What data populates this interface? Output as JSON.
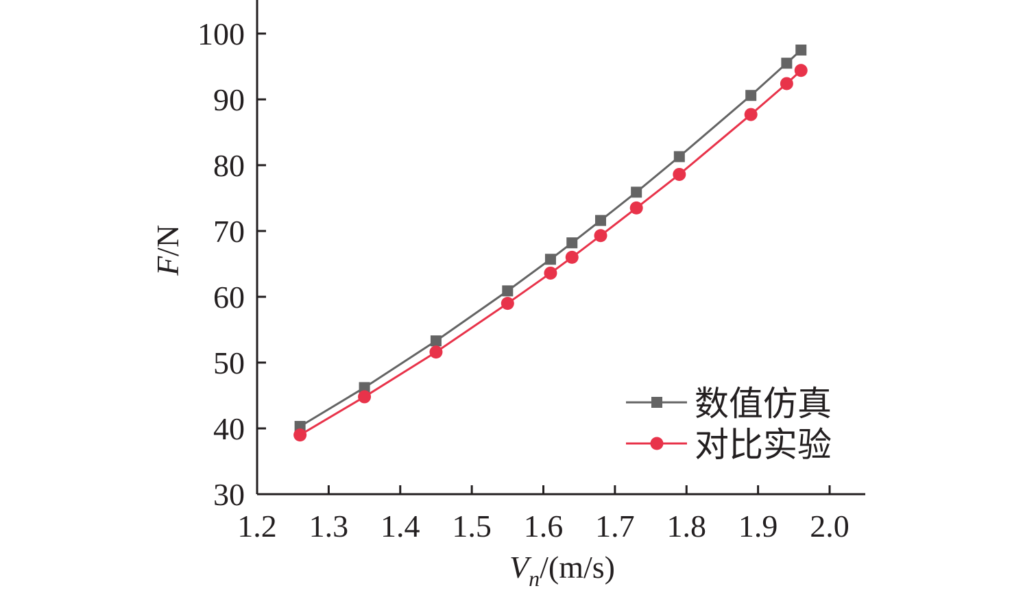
{
  "chart_data": {
    "type": "line",
    "title": "",
    "xlabel": "V_n/(m/s)",
    "xlabel_parts": {
      "var": "V",
      "sub": "n",
      "unit": "/(m/s)"
    },
    "ylabel": "F/N",
    "ylabel_parts": {
      "var": "F",
      "unit": "/N"
    },
    "xlim": [
      1.2,
      2.05
    ],
    "ylim": [
      30,
      105
    ],
    "xticks": [
      "1.2",
      "1.3",
      "1.4",
      "1.5",
      "1.6",
      "1.7",
      "1.8",
      "1.9",
      "2.0"
    ],
    "yticks": [
      "30",
      "40",
      "50",
      "60",
      "70",
      "80",
      "90",
      "100"
    ],
    "grid": false,
    "legend_position": "bottom-right",
    "x": [
      1.26,
      1.35,
      1.45,
      1.55,
      1.61,
      1.64,
      1.68,
      1.73,
      1.79,
      1.89,
      1.94,
      1.96
    ],
    "series": [
      {
        "name": "数值仿真",
        "color": "#646464",
        "marker": "square",
        "values": [
          40.3,
          46.2,
          53.3,
          60.9,
          65.7,
          68.2,
          71.6,
          75.9,
          81.3,
          90.6,
          95.5,
          97.5
        ]
      },
      {
        "name": "对比实验",
        "color": "#e8334a",
        "marker": "circle",
        "values": [
          39.0,
          44.8,
          51.6,
          59.0,
          63.6,
          66.0,
          69.3,
          73.5,
          78.6,
          87.7,
          92.4,
          94.4
        ]
      }
    ]
  }
}
